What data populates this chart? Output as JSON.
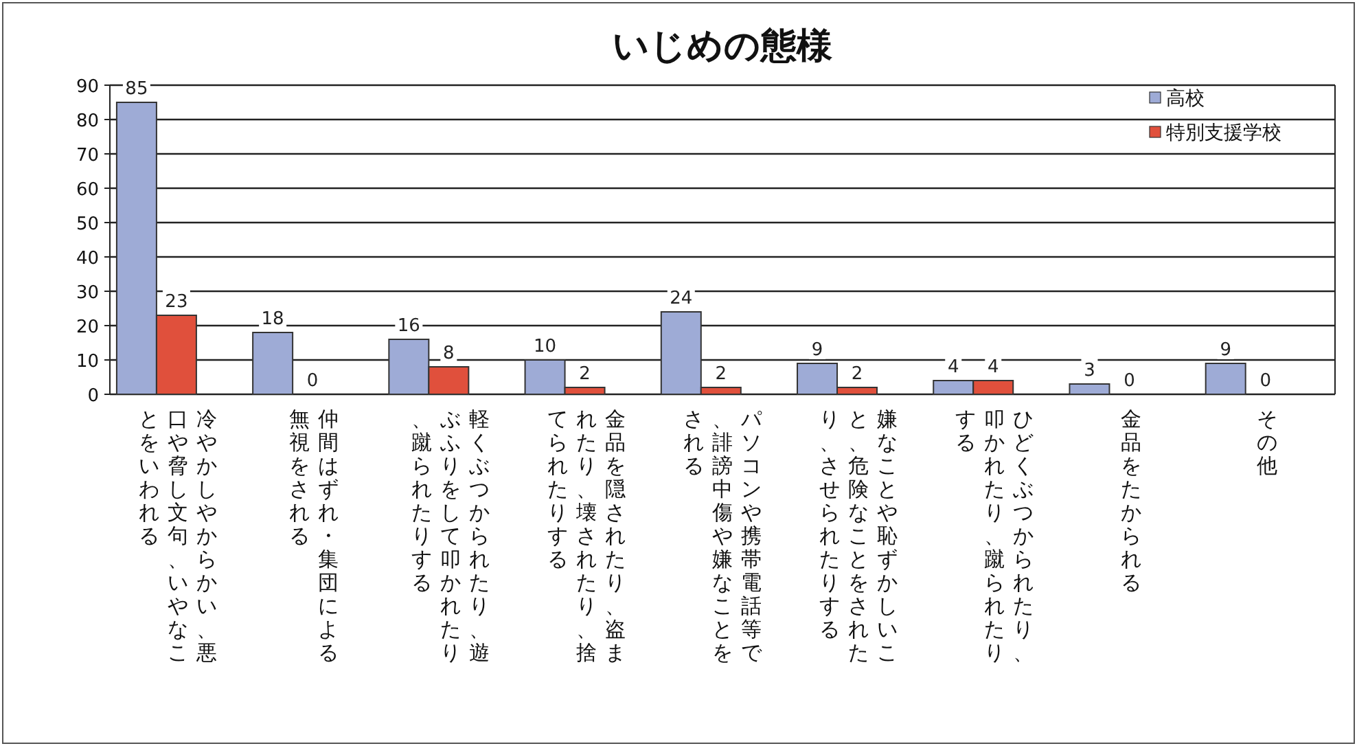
{
  "chart_data": {
    "type": "bar",
    "title": "いじめの態様",
    "categories": [
      "冷やかしやからかい、悪口や脅し文句、いやなことをいわれる",
      "仲間はずれ・集団による無視をされる",
      "軽くぶつかられたり、遊ぶふりをして叩かれたり、蹴られたりする",
      "金品を隠されたり、盗まれたり、壊されたり、捨てられたりする",
      "パソコンや携帯電話等で、誹謗中傷や嫌なことをされる",
      "嫌なことや恥ずかしいこと、危険なことをされたり、させられたりする",
      "ひどくぶつかられたり、叩かれたり、蹴られたりする",
      "金品をたかられる",
      "その他"
    ],
    "series": [
      {
        "name": "高校",
        "color": "#9eabd6",
        "values": [
          85,
          18,
          16,
          10,
          24,
          9,
          4,
          3,
          9
        ]
      },
      {
        "name": "特別支援学校",
        "color": "#e0503c",
        "values": [
          23,
          0,
          8,
          2,
          2,
          2,
          4,
          0,
          0
        ]
      }
    ],
    "ylim": [
      0,
      90
    ],
    "yticks": [
      0,
      10,
      20,
      30,
      40,
      50,
      60,
      70,
      80,
      90
    ],
    "grid": "y",
    "legend": "top right",
    "data_labels": true
  }
}
